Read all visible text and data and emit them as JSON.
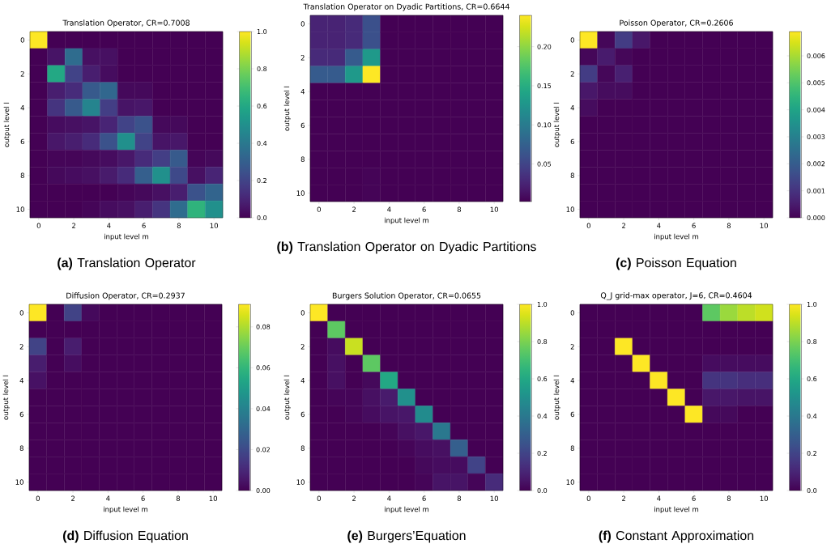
{
  "chart_data": [
    {
      "type": "heatmap",
      "title": "Translation Operator, CR=0.7008",
      "xlabel": "input level m",
      "ylabel": "output level l",
      "categories": [
        "0",
        null,
        "2",
        null,
        "4",
        null,
        "6",
        null,
        "8",
        null,
        "10"
      ],
      "y_categories": [
        "0",
        null,
        "2",
        null,
        "4",
        null,
        "6",
        null,
        "8",
        null,
        "10"
      ],
      "cells": [
        [
          1,
          0,
          0,
          0,
          0,
          0,
          0,
          0,
          0,
          0,
          0
        ],
        [
          0,
          0.05,
          0.35,
          0.04,
          0.04,
          0,
          0,
          0,
          0,
          0,
          0
        ],
        [
          0,
          0.6,
          0.2,
          0.08,
          0.03,
          0,
          0,
          0,
          0,
          0,
          0
        ],
        [
          0,
          0.08,
          0.12,
          0.28,
          0.33,
          0.02,
          0.02,
          0,
          0,
          0,
          0
        ],
        [
          0,
          0.15,
          0.28,
          0.45,
          0.18,
          0.05,
          0.06,
          0,
          0,
          0,
          0
        ],
        [
          0,
          0.03,
          0.04,
          0.05,
          0.1,
          0.2,
          0.25,
          0.02,
          0.02,
          0,
          0
        ],
        [
          0,
          0.06,
          0.08,
          0.12,
          0.25,
          0.5,
          0.2,
          0.05,
          0.06,
          0,
          0
        ],
        [
          0,
          0.01,
          0.01,
          0.02,
          0.03,
          0.06,
          0.12,
          0.18,
          0.28,
          0.01,
          0.02
        ],
        [
          0,
          0.02,
          0.03,
          0.04,
          0.07,
          0.12,
          0.3,
          0.5,
          0.22,
          0.04,
          0.1
        ],
        [
          0,
          0,
          0,
          0,
          0,
          0.01,
          0.02,
          0.04,
          0.08,
          0.25,
          0.32
        ],
        [
          0,
          0,
          0,
          0.01,
          0.03,
          0.04,
          0.08,
          0.15,
          0.35,
          0.65,
          0.5
        ]
      ],
      "clim": [
        0,
        1
      ],
      "cticks": [
        {
          "value": 0,
          "label": "0.0"
        },
        {
          "value": 0.2,
          "label": "0.2"
        },
        {
          "value": 0.4,
          "label": "0.4"
        },
        {
          "value": 0.6,
          "label": "0.6"
        },
        {
          "value": 0.8,
          "label": "0.8"
        },
        {
          "value": 1,
          "label": "1.0"
        }
      ],
      "annotations": [
        "**(a)** Translation Operator"
      ]
    },
    {
      "type": "heatmap",
      "title": "Translation Operator on Dyadic Partitions, CR=0.6644",
      "xlabel": "input level m",
      "ylabel": "output level l",
      "categories": [
        "0",
        null,
        "2",
        null,
        "4",
        null,
        "6",
        null,
        "8",
        null,
        "10"
      ],
      "y_categories": [
        "0",
        null,
        "2",
        null,
        "4",
        null,
        "6",
        null,
        "8",
        null,
        "10"
      ],
      "cells": [
        [
          0.025,
          0.025,
          0.03,
          0.06,
          0.002,
          0.002,
          0.002,
          0.002,
          0.002,
          0.002,
          0.002
        ],
        [
          0.025,
          0.025,
          0.03,
          0.06,
          0.002,
          0.002,
          0.002,
          0.002,
          0.002,
          0.002,
          0.002
        ],
        [
          0.03,
          0.03,
          0.07,
          0.13,
          0.002,
          0.002,
          0.002,
          0.002,
          0.002,
          0.002,
          0.002
        ],
        [
          0.07,
          0.07,
          0.13,
          0.24,
          0.002,
          0.002,
          0.002,
          0.002,
          0.002,
          0.002,
          0.002
        ],
        [
          0.002,
          0.002,
          0.002,
          0.002,
          0.002,
          0.002,
          0.002,
          0.002,
          0.002,
          0.002,
          0.002
        ],
        [
          0.002,
          0.002,
          0.002,
          0.002,
          0.002,
          0.002,
          0.002,
          0.002,
          0.002,
          0.002,
          0.002
        ],
        [
          0.002,
          0.002,
          0.002,
          0.002,
          0.002,
          0.002,
          0.002,
          0.002,
          0.002,
          0.002,
          0.002
        ],
        [
          0.002,
          0.002,
          0.002,
          0.002,
          0.002,
          0.002,
          0.002,
          0.002,
          0.002,
          0.002,
          0.002
        ],
        [
          0.002,
          0.002,
          0.002,
          0.002,
          0.002,
          0.002,
          0.002,
          0.002,
          0.002,
          0.002,
          0.002
        ],
        [
          0.002,
          0.002,
          0.002,
          0.004,
          0.002,
          0.002,
          0.002,
          0.002,
          0.002,
          0.002,
          0.002
        ],
        [
          0.002,
          0.002,
          0.002,
          0.004,
          0.002,
          0.002,
          0.002,
          0.002,
          0.002,
          0.002,
          0.002
        ]
      ],
      "clim": [
        0.002,
        0.24
      ],
      "cticks": [
        {
          "value": 0.05,
          "label": "0.05"
        },
        {
          "value": 0.1,
          "label": "0.10"
        },
        {
          "value": 0.15,
          "label": "0.15"
        },
        {
          "value": 0.2,
          "label": "0.20"
        }
      ],
      "annotations": [
        "**(b)** Translation Operator on Dyadic Partitions"
      ]
    },
    {
      "type": "heatmap",
      "title": "Poisson Operator, CR=0.2606",
      "xlabel": "input level m",
      "ylabel": "output level l",
      "categories": [
        "0",
        null,
        "2",
        null,
        "4",
        null,
        "6",
        null,
        "8",
        null,
        "10"
      ],
      "y_categories": [
        "0",
        null,
        "2",
        null,
        "4",
        null,
        "6",
        null,
        "8",
        null,
        "10"
      ],
      "cells": [
        [
          0.0069,
          0.0001,
          0.0012,
          0.0004,
          0,
          0,
          0,
          0,
          0,
          0,
          0
        ],
        [
          0.0001,
          0.0005,
          0.0001,
          0,
          0,
          0,
          0,
          0,
          0,
          0,
          0
        ],
        [
          0.0012,
          0.0001,
          0.0006,
          0,
          0,
          0,
          0,
          0,
          0,
          0,
          0
        ],
        [
          0.0004,
          0.0002,
          0.0002,
          0,
          0,
          0,
          0,
          0,
          0,
          0,
          0
        ],
        [
          0.0002,
          0,
          0,
          0,
          0,
          0,
          0,
          0,
          0,
          0,
          0
        ],
        [
          0,
          0,
          0,
          0,
          0,
          0,
          0,
          0,
          0,
          0,
          0
        ],
        [
          0,
          0,
          0,
          0,
          0,
          0,
          0,
          0,
          0,
          0,
          0
        ],
        [
          0,
          0,
          0,
          0,
          0,
          0,
          0,
          0,
          0,
          0,
          0
        ],
        [
          0,
          0,
          0,
          0,
          0,
          0,
          0,
          0,
          0,
          0,
          0
        ],
        [
          0,
          0,
          0,
          0,
          0,
          0,
          0,
          0,
          0,
          0,
          0
        ],
        [
          0,
          0,
          0,
          0,
          0,
          0,
          0,
          0,
          0,
          0,
          0
        ]
      ],
      "clim": [
        0,
        0.0069
      ],
      "cticks": [
        {
          "value": 0,
          "label": "0.000"
        },
        {
          "value": 0.001,
          "label": "0.001"
        },
        {
          "value": 0.002,
          "label": "0.002"
        },
        {
          "value": 0.003,
          "label": "0.003"
        },
        {
          "value": 0.004,
          "label": "0.004"
        },
        {
          "value": 0.005,
          "label": "0.005"
        },
        {
          "value": 0.006,
          "label": "0.006"
        }
      ],
      "annotations": [
        "**(c)** Poisson Equation"
      ]
    },
    {
      "type": "heatmap",
      "title": "Diffusion Operator, CR=0.2937",
      "xlabel": "input level m",
      "ylabel": "output level l",
      "categories": [
        "0",
        null,
        "2",
        null,
        "4",
        null,
        "6",
        null,
        "8",
        null,
        "10"
      ],
      "y_categories": [
        "0",
        null,
        "2",
        null,
        "4",
        null,
        "6",
        null,
        "8",
        null,
        "10"
      ],
      "cells": [
        [
          0.091,
          0,
          0.018,
          0.002,
          0,
          0,
          0,
          0,
          0,
          0,
          0
        ],
        [
          0,
          0,
          0,
          0,
          0,
          0,
          0,
          0,
          0,
          0,
          0
        ],
        [
          0.018,
          0,
          0.007,
          0,
          0,
          0,
          0,
          0,
          0,
          0,
          0
        ],
        [
          0.007,
          0,
          0.003,
          0,
          0,
          0,
          0,
          0,
          0,
          0,
          0
        ],
        [
          0.004,
          0,
          0,
          0,
          0,
          0,
          0,
          0,
          0,
          0,
          0
        ],
        [
          0,
          0,
          0,
          0,
          0,
          0,
          0,
          0,
          0,
          0,
          0
        ],
        [
          0,
          0,
          0,
          0,
          0,
          0,
          0,
          0,
          0,
          0,
          0
        ],
        [
          0,
          0,
          0,
          0,
          0,
          0,
          0,
          0,
          0,
          0,
          0
        ],
        [
          0,
          0,
          0,
          0,
          0,
          0,
          0,
          0,
          0,
          0,
          0
        ],
        [
          0,
          0,
          0,
          0,
          0,
          0,
          0,
          0,
          0,
          0,
          0
        ],
        [
          0,
          0,
          0,
          0,
          0,
          0,
          0,
          0,
          0,
          0,
          0
        ]
      ],
      "clim": [
        0,
        0.091
      ],
      "cticks": [
        {
          "value": 0,
          "label": "0.00"
        },
        {
          "value": 0.02,
          "label": "0.02"
        },
        {
          "value": 0.04,
          "label": "0.04"
        },
        {
          "value": 0.06,
          "label": "0.06"
        },
        {
          "value": 0.08,
          "label": "0.08"
        }
      ],
      "annotations": [
        "**(d)** Diffusion Equation"
      ]
    },
    {
      "type": "heatmap",
      "title": "Burgers Solution Operator, CR=0.0655",
      "xlabel": "input level m",
      "ylabel": "output level l",
      "categories": [
        "0",
        null,
        "2",
        null,
        "4",
        null,
        "6",
        null,
        "8",
        null,
        "10"
      ],
      "y_categories": [
        "0",
        null,
        "2",
        null,
        "4",
        null,
        "6",
        null,
        "8",
        null,
        "10"
      ],
      "cells": [
        [
          1,
          0,
          0,
          0,
          0,
          0,
          0,
          0,
          0,
          0,
          0
        ],
        [
          0,
          0.75,
          0,
          0,
          0,
          0,
          0,
          0,
          0,
          0,
          0
        ],
        [
          0,
          0.03,
          0.92,
          0,
          0,
          0,
          0,
          0,
          0,
          0,
          0
        ],
        [
          0,
          0.04,
          0,
          0.75,
          0,
          0,
          0,
          0,
          0,
          0,
          0
        ],
        [
          0,
          0.04,
          0,
          0.02,
          0.6,
          0,
          0,
          0,
          0,
          0,
          0
        ],
        [
          0,
          0.01,
          0.01,
          0.04,
          0.07,
          0.5,
          0,
          0,
          0,
          0,
          0
        ],
        [
          0,
          0,
          0.01,
          0.03,
          0.05,
          0.06,
          0.48,
          0,
          0,
          0,
          0
        ],
        [
          0,
          0,
          0,
          0,
          0.01,
          0.04,
          0.06,
          0.4,
          0,
          0,
          0
        ],
        [
          0,
          0,
          0,
          0,
          0,
          0.01,
          0.03,
          0.04,
          0.3,
          0,
          0
        ],
        [
          0,
          0,
          0,
          0,
          0,
          0,
          0.02,
          0.03,
          0.03,
          0.2,
          0
        ],
        [
          0,
          0,
          0,
          0,
          0,
          0,
          0.01,
          0.05,
          0.05,
          0.01,
          0.12
        ]
      ],
      "clim": [
        0,
        1
      ],
      "cticks": [
        {
          "value": 0,
          "label": "0.0"
        },
        {
          "value": 0.2,
          "label": "0.2"
        },
        {
          "value": 0.4,
          "label": "0.4"
        },
        {
          "value": 0.6,
          "label": "0.6"
        },
        {
          "value": 0.8,
          "label": "0.8"
        },
        {
          "value": 1,
          "label": "1.0"
        }
      ],
      "annotations": [
        "**(e)** Burgers’Equation"
      ]
    },
    {
      "type": "heatmap",
      "title": "Q_J grid-max operator, J=6, CR=0.4604",
      "xlabel": "input level m",
      "ylabel": "output level l",
      "categories": [
        "0",
        null,
        "2",
        null,
        "4",
        null,
        "6",
        null,
        "8",
        null,
        "10"
      ],
      "y_categories": [
        "0",
        null,
        "2",
        null,
        "4",
        null,
        "6",
        null,
        "8",
        null,
        "10"
      ],
      "cells": [
        [
          0,
          0,
          0,
          0,
          0,
          0,
          0,
          0.75,
          0.85,
          0.9,
          0.93
        ],
        [
          0,
          0,
          0,
          0,
          0,
          0,
          0,
          0,
          0,
          0,
          0
        ],
        [
          0,
          0,
          1,
          0,
          0,
          0,
          0,
          0,
          0,
          0,
          0
        ],
        [
          0,
          0,
          0,
          1,
          0,
          0,
          0,
          0.03,
          0.03,
          0.03,
          0.03
        ],
        [
          0,
          0,
          0,
          0,
          1,
          0,
          0,
          0.15,
          0.15,
          0.13,
          0.13
        ],
        [
          0,
          0,
          0,
          0,
          0,
          1,
          0,
          0.06,
          0.06,
          0.05,
          0.05
        ],
        [
          0,
          0,
          0,
          0,
          0,
          0,
          1,
          0.02,
          0.02,
          0,
          0
        ],
        [
          0,
          0,
          0,
          0,
          0,
          0,
          0,
          0,
          0,
          0,
          0
        ],
        [
          0,
          0,
          0,
          0,
          0,
          0,
          0,
          0,
          0,
          0,
          0
        ],
        [
          0,
          0,
          0,
          0,
          0,
          0,
          0,
          0,
          0,
          0,
          0
        ],
        [
          0,
          0,
          0,
          0,
          0,
          0,
          0,
          0,
          0,
          0,
          0
        ]
      ],
      "clim": [
        0,
        1
      ],
      "cticks": [
        {
          "value": 0,
          "label": "0.0"
        },
        {
          "value": 0.2,
          "label": "0.2"
        },
        {
          "value": 0.4,
          "label": "0.4"
        },
        {
          "value": 0.6,
          "label": "0.6"
        },
        {
          "value": 0.8,
          "label": "0.8"
        },
        {
          "value": 1,
          "label": "1.0"
        }
      ],
      "annotations": [
        "**(f)** Constant Approximation"
      ]
    }
  ]
}
